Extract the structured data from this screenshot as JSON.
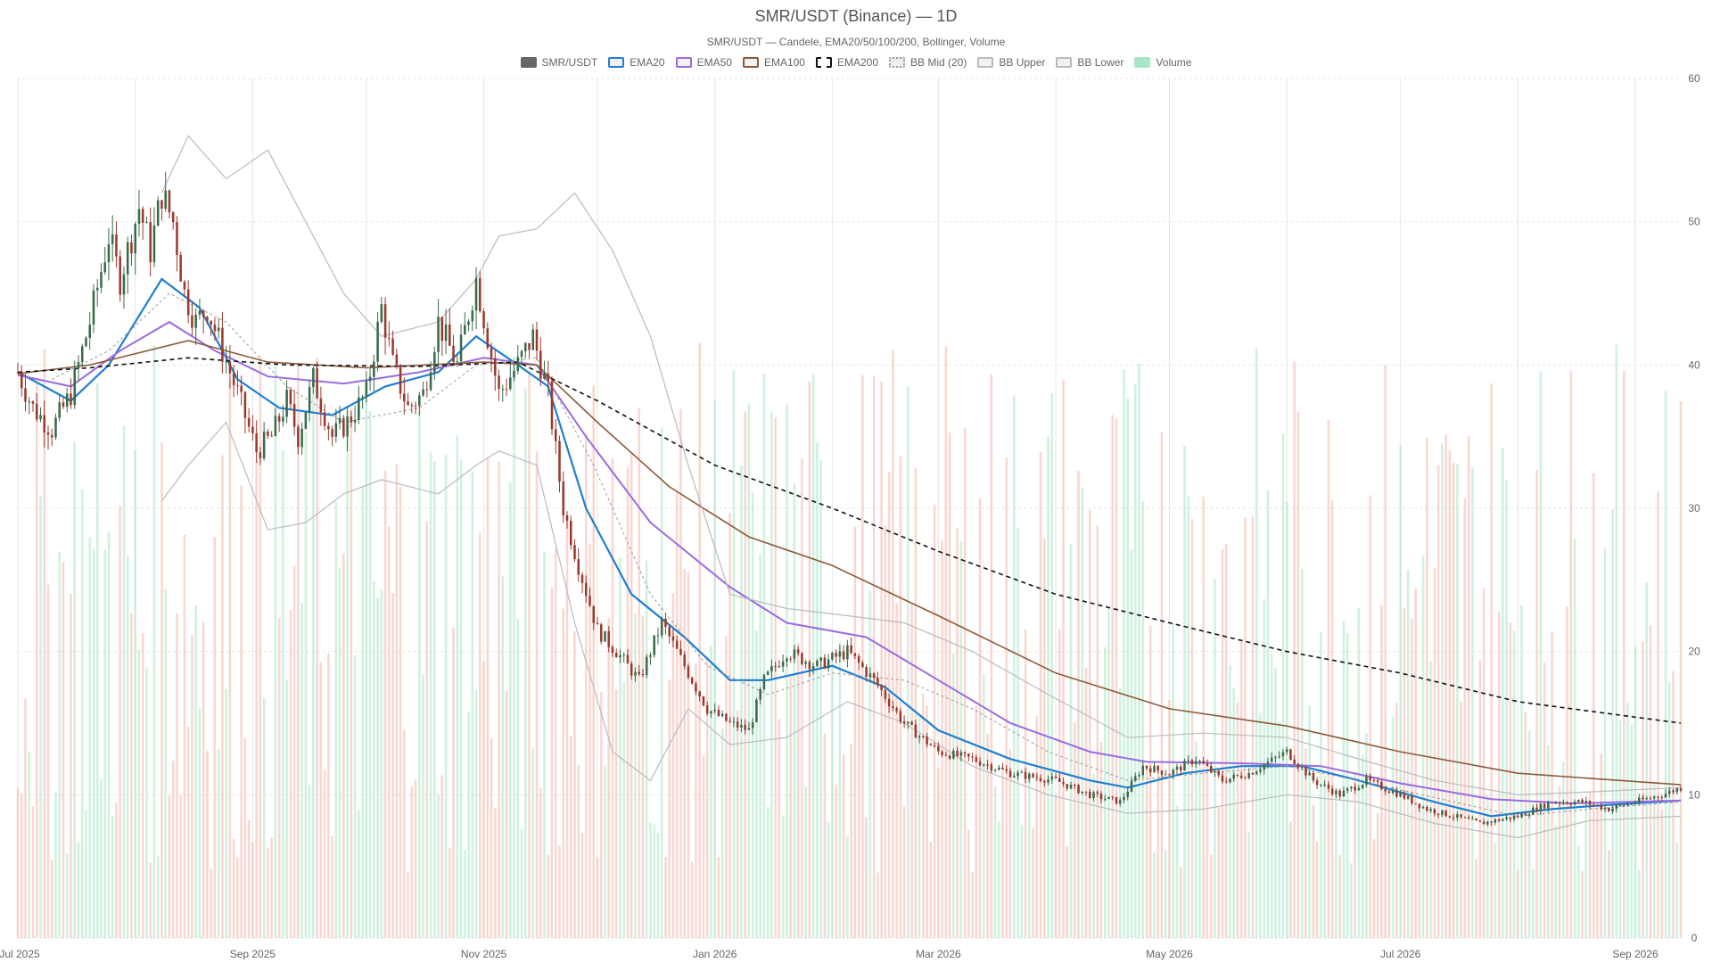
{
  "chart_data": {
    "type": "candlestick",
    "title": "SMR/USDT (Binance) — 1D",
    "subtitle": "SMR/USDT — Candele, EMA20/50/100/200, Bollinger, Volume",
    "legend": [
      {
        "name": "SMR/USDT",
        "color": "#666666",
        "style": "solid-fill"
      },
      {
        "name": "EMA20",
        "color": "#1f7fd1",
        "style": "line"
      },
      {
        "name": "EMA50",
        "color": "#9a6be0",
        "style": "line"
      },
      {
        "name": "EMA100",
        "color": "#8b5a3c",
        "style": "line"
      },
      {
        "name": "EMA200",
        "color": "#111111",
        "style": "dashed"
      },
      {
        "name": "BB Mid (20)",
        "color": "#999999",
        "style": "dotted"
      },
      {
        "name": "BB Upper",
        "color": "#bbbbbb",
        "style": "line"
      },
      {
        "name": "BB Lower",
        "color": "#bbbbbb",
        "style": "line"
      },
      {
        "name": "Volume",
        "color": "#a8e6c3",
        "style": "fill"
      }
    ],
    "x_ticks": [
      "Jul 2025",
      "Sep 2025",
      "Nov 2025",
      "Jan 2026",
      "Mar 2026",
      "May 2026",
      "Jul 2026",
      "Sep 2026"
    ],
    "y_ticks": [
      0,
      10,
      20,
      30,
      40,
      50,
      60
    ],
    "ylim": [
      0,
      60
    ],
    "x_range": [
      "2025-07-01",
      "2026-09-13"
    ],
    "colors": {
      "up": "#3a6b4a",
      "down": "#9b3a2c",
      "vol_up": "#a8e6c3",
      "vol_down": "#f3b7ab",
      "grid": "#e6e6e6"
    },
    "series": [
      {
        "name": "Close (approx)",
        "points": [
          [
            "2025-07-01",
            39.5
          ],
          [
            "2025-07-05",
            37
          ],
          [
            "2025-07-10",
            35.5
          ],
          [
            "2025-07-15",
            38
          ],
          [
            "2025-07-20",
            43
          ],
          [
            "2025-07-25",
            49
          ],
          [
            "2025-07-28",
            46
          ],
          [
            "2025-08-02",
            51
          ],
          [
            "2025-08-05",
            48
          ],
          [
            "2025-08-08",
            52
          ],
          [
            "2025-08-11",
            50
          ],
          [
            "2025-08-14",
            45
          ],
          [
            "2025-08-17",
            43
          ],
          [
            "2025-08-20",
            44
          ],
          [
            "2025-08-24",
            41
          ],
          [
            "2025-08-28",
            38
          ],
          [
            "2025-09-02",
            34
          ],
          [
            "2025-09-06",
            35
          ],
          [
            "2025-09-10",
            37.5
          ],
          [
            "2025-09-13",
            35
          ],
          [
            "2025-09-17",
            39
          ],
          [
            "2025-09-22",
            35
          ],
          [
            "2025-09-26",
            36
          ],
          [
            "2025-10-01",
            38
          ],
          [
            "2025-10-05",
            44
          ],
          [
            "2025-10-08",
            40
          ],
          [
            "2025-10-12",
            37
          ],
          [
            "2025-10-16",
            38
          ],
          [
            "2025-10-20",
            43
          ],
          [
            "2025-10-25",
            40
          ],
          [
            "2025-10-30",
            46
          ],
          [
            "2025-11-02",
            42
          ],
          [
            "2025-11-05",
            38
          ],
          [
            "2025-11-10",
            40
          ],
          [
            "2025-11-14",
            42
          ],
          [
            "2025-11-18",
            38
          ],
          [
            "2025-11-22",
            30
          ],
          [
            "2025-11-26",
            26
          ],
          [
            "2025-12-01",
            21.5
          ],
          [
            "2025-12-06",
            20
          ],
          [
            "2025-12-12",
            18
          ],
          [
            "2025-12-18",
            22
          ],
          [
            "2025-12-24",
            19
          ],
          [
            "2025-12-30",
            16
          ],
          [
            "2026-01-05",
            15
          ],
          [
            "2026-01-10",
            14.5
          ],
          [
            "2026-01-14",
            18
          ],
          [
            "2026-01-20",
            20
          ],
          [
            "2026-01-28",
            19
          ],
          [
            "2026-02-05",
            20
          ],
          [
            "2026-02-12",
            18
          ],
          [
            "2026-02-20",
            15
          ],
          [
            "2026-03-01",
            13
          ],
          [
            "2026-03-10",
            12.5
          ],
          [
            "2026-03-20",
            11.5
          ],
          [
            "2026-04-01",
            11
          ],
          [
            "2026-04-10",
            10
          ],
          [
            "2026-04-18",
            9.5
          ],
          [
            "2026-04-24",
            12
          ],
          [
            "2026-05-01",
            11.5
          ],
          [
            "2026-05-08",
            12.5
          ],
          [
            "2026-05-15",
            11
          ],
          [
            "2026-05-22",
            11.5
          ],
          [
            "2026-06-01",
            13
          ],
          [
            "2026-06-08",
            11
          ],
          [
            "2026-06-15",
            10
          ],
          [
            "2026-06-22",
            11
          ],
          [
            "2026-07-01",
            10
          ],
          [
            "2026-07-08",
            9
          ],
          [
            "2026-07-15",
            8.5
          ],
          [
            "2026-07-22",
            8
          ],
          [
            "2026-08-01",
            8.5
          ],
          [
            "2026-08-10",
            9.5
          ],
          [
            "2026-08-18",
            9.5
          ],
          [
            "2026-08-25",
            9
          ],
          [
            "2026-09-01",
            9.5
          ],
          [
            "2026-09-08",
            10
          ],
          [
            "2026-09-13",
            10.5
          ]
        ]
      },
      {
        "name": "EMA20",
        "points": [
          [
            "2025-07-01",
            39.5
          ],
          [
            "2025-07-15",
            37.5
          ],
          [
            "2025-07-25",
            40
          ],
          [
            "2025-08-08",
            46
          ],
          [
            "2025-08-18",
            44
          ],
          [
            "2025-08-28",
            39
          ],
          [
            "2025-09-08",
            37
          ],
          [
            "2025-09-22",
            36.5
          ],
          [
            "2025-10-06",
            38.5
          ],
          [
            "2025-10-20",
            39.5
          ],
          [
            "2025-10-30",
            42
          ],
          [
            "2025-11-10",
            40
          ],
          [
            "2025-11-18",
            38.5
          ],
          [
            "2025-11-28",
            30
          ],
          [
            "2025-12-10",
            24
          ],
          [
            "2025-12-24",
            21
          ],
          [
            "2026-01-05",
            18
          ],
          [
            "2026-01-15",
            18
          ],
          [
            "2026-02-01",
            19
          ],
          [
            "2026-02-15",
            17.5
          ],
          [
            "2026-03-01",
            14.5
          ],
          [
            "2026-03-20",
            12.5
          ],
          [
            "2026-04-10",
            11
          ],
          [
            "2026-04-20",
            10.5
          ],
          [
            "2026-05-05",
            11.5
          ],
          [
            "2026-05-20",
            12
          ],
          [
            "2026-06-05",
            12
          ],
          [
            "2026-06-20",
            11
          ],
          [
            "2026-07-10",
            9.5
          ],
          [
            "2026-07-25",
            8.5
          ],
          [
            "2026-08-10",
            9
          ],
          [
            "2026-08-25",
            9.3
          ],
          [
            "2026-09-13",
            9.6
          ]
        ]
      },
      {
        "name": "EMA50",
        "points": [
          [
            "2025-07-01",
            39.3
          ],
          [
            "2025-07-15",
            38.5
          ],
          [
            "2025-07-28",
            41
          ],
          [
            "2025-08-10",
            43
          ],
          [
            "2025-08-22",
            41
          ],
          [
            "2025-09-05",
            39.2
          ],
          [
            "2025-09-25",
            38.7
          ],
          [
            "2025-10-15",
            39.5
          ],
          [
            "2025-11-01",
            40.5
          ],
          [
            "2025-11-15",
            40
          ],
          [
            "2025-11-28",
            35
          ],
          [
            "2025-12-15",
            29
          ],
          [
            "2026-01-05",
            24.5
          ],
          [
            "2026-01-20",
            22
          ],
          [
            "2026-02-10",
            21
          ],
          [
            "2026-03-01",
            18
          ],
          [
            "2026-03-20",
            15
          ],
          [
            "2026-04-10",
            13
          ],
          [
            "2026-04-25",
            12.3
          ],
          [
            "2026-05-20",
            12.2
          ],
          [
            "2026-06-10",
            12
          ],
          [
            "2026-07-01",
            10.8
          ],
          [
            "2026-07-25",
            9.7
          ],
          [
            "2026-08-15",
            9.4
          ],
          [
            "2026-09-13",
            9.6
          ]
        ]
      },
      {
        "name": "EMA100",
        "points": [
          [
            "2025-07-01",
            39.4
          ],
          [
            "2025-07-20",
            40
          ],
          [
            "2025-08-15",
            41.7
          ],
          [
            "2025-09-05",
            40.2
          ],
          [
            "2025-10-01",
            39.8
          ],
          [
            "2025-11-01",
            40.2
          ],
          [
            "2025-11-15",
            40
          ],
          [
            "2025-12-01",
            36
          ],
          [
            "2025-12-20",
            31.5
          ],
          [
            "2026-01-10",
            28
          ],
          [
            "2026-02-01",
            26
          ],
          [
            "2026-03-01",
            22.5
          ],
          [
            "2026-04-01",
            18.5
          ],
          [
            "2026-05-01",
            16
          ],
          [
            "2026-06-01",
            14.8
          ],
          [
            "2026-07-01",
            13
          ],
          [
            "2026-08-01",
            11.5
          ],
          [
            "2026-09-13",
            10.7
          ]
        ]
      },
      {
        "name": "EMA200",
        "points": [
          [
            "2025-07-01",
            39.5
          ],
          [
            "2025-07-20",
            39.8
          ],
          [
            "2025-08-15",
            40.5
          ],
          [
            "2025-09-10",
            40
          ],
          [
            "2025-10-15",
            39.9
          ],
          [
            "2025-11-10",
            40.2
          ],
          [
            "2025-12-01",
            37.5
          ],
          [
            "2026-01-01",
            33
          ],
          [
            "2026-02-01",
            30
          ],
          [
            "2026-03-01",
            27
          ],
          [
            "2026-04-01",
            24
          ],
          [
            "2026-05-01",
            22
          ],
          [
            "2026-06-01",
            20
          ],
          [
            "2026-07-01",
            18.5
          ],
          [
            "2026-08-01",
            16.5
          ],
          [
            "2026-09-13",
            15
          ]
        ]
      },
      {
        "name": "BB Mid (20)",
        "points": [
          [
            "2025-07-10",
            39
          ],
          [
            "2025-07-25",
            41
          ],
          [
            "2025-08-10",
            45
          ],
          [
            "2025-08-25",
            43
          ],
          [
            "2025-09-10",
            38.5
          ],
          [
            "2025-09-25",
            36
          ],
          [
            "2025-10-15",
            37
          ],
          [
            "2025-10-30",
            40
          ],
          [
            "2025-11-15",
            40.5
          ],
          [
            "2025-11-30",
            33
          ],
          [
            "2025-12-15",
            24
          ],
          [
            "2025-12-30",
            19
          ],
          [
            "2026-01-15",
            17
          ],
          [
            "2026-02-01",
            18.5
          ],
          [
            "2026-02-20",
            18
          ],
          [
            "2026-03-10",
            16
          ],
          [
            "2026-03-30",
            13
          ],
          [
            "2026-04-20",
            11
          ],
          [
            "2026-05-10",
            11.5
          ],
          [
            "2026-06-01",
            12
          ],
          [
            "2026-06-20",
            11
          ],
          [
            "2026-07-10",
            9.8
          ],
          [
            "2026-08-01",
            8.5
          ],
          [
            "2026-08-20",
            9
          ],
          [
            "2026-09-13",
            9.5
          ]
        ]
      },
      {
        "name": "BB Upper",
        "points": [
          [
            "2025-08-08",
            52
          ],
          [
            "2025-08-15",
            56
          ],
          [
            "2025-08-25",
            53
          ],
          [
            "2025-09-05",
            55
          ],
          [
            "2025-09-15",
            50
          ],
          [
            "2025-09-25",
            45
          ],
          [
            "2025-10-05",
            42
          ],
          [
            "2025-10-20",
            43
          ],
          [
            "2025-10-30",
            46
          ],
          [
            "2025-11-05",
            49
          ],
          [
            "2025-11-15",
            49.5
          ],
          [
            "2025-11-25",
            52
          ],
          [
            "2025-12-05",
            48
          ],
          [
            "2025-12-15",
            42
          ],
          [
            "2025-12-25",
            33
          ],
          [
            "2026-01-05",
            24
          ],
          [
            "2026-01-20",
            23
          ],
          [
            "2026-02-05",
            22.5
          ],
          [
            "2026-02-20",
            22
          ],
          [
            "2026-03-10",
            20
          ],
          [
            "2026-03-30",
            17
          ],
          [
            "2026-04-20",
            14
          ],
          [
            "2026-05-10",
            14.3
          ],
          [
            "2026-06-01",
            14
          ],
          [
            "2026-06-20",
            12.5
          ],
          [
            "2026-07-10",
            11
          ],
          [
            "2026-08-01",
            10
          ],
          [
            "2026-08-20",
            10.2
          ],
          [
            "2026-09-13",
            10.5
          ]
        ]
      },
      {
        "name": "BB Lower",
        "points": [
          [
            "2025-08-08",
            30.5
          ],
          [
            "2025-08-15",
            33
          ],
          [
            "2025-08-25",
            36
          ],
          [
            "2025-09-05",
            28.5
          ],
          [
            "2025-09-15",
            29
          ],
          [
            "2025-09-25",
            31
          ],
          [
            "2025-10-05",
            32
          ],
          [
            "2025-10-20",
            31
          ],
          [
            "2025-10-30",
            33
          ],
          [
            "2025-11-05",
            34
          ],
          [
            "2025-11-15",
            33
          ],
          [
            "2025-11-25",
            22
          ],
          [
            "2025-12-05",
            13
          ],
          [
            "2025-12-15",
            11
          ],
          [
            "2025-12-25",
            16
          ],
          [
            "2026-01-05",
            13.5
          ],
          [
            "2026-01-20",
            14
          ],
          [
            "2026-02-05",
            16.5
          ],
          [
            "2026-02-20",
            15
          ],
          [
            "2026-03-10",
            12
          ],
          [
            "2026-03-30",
            10
          ],
          [
            "2026-04-20",
            8.7
          ],
          [
            "2026-05-10",
            9
          ],
          [
            "2026-06-01",
            10
          ],
          [
            "2026-06-20",
            9.5
          ],
          [
            "2026-07-10",
            8
          ],
          [
            "2026-08-01",
            7
          ],
          [
            "2026-08-20",
            8.2
          ],
          [
            "2026-09-13",
            8.5
          ]
        ]
      }
    ]
  }
}
